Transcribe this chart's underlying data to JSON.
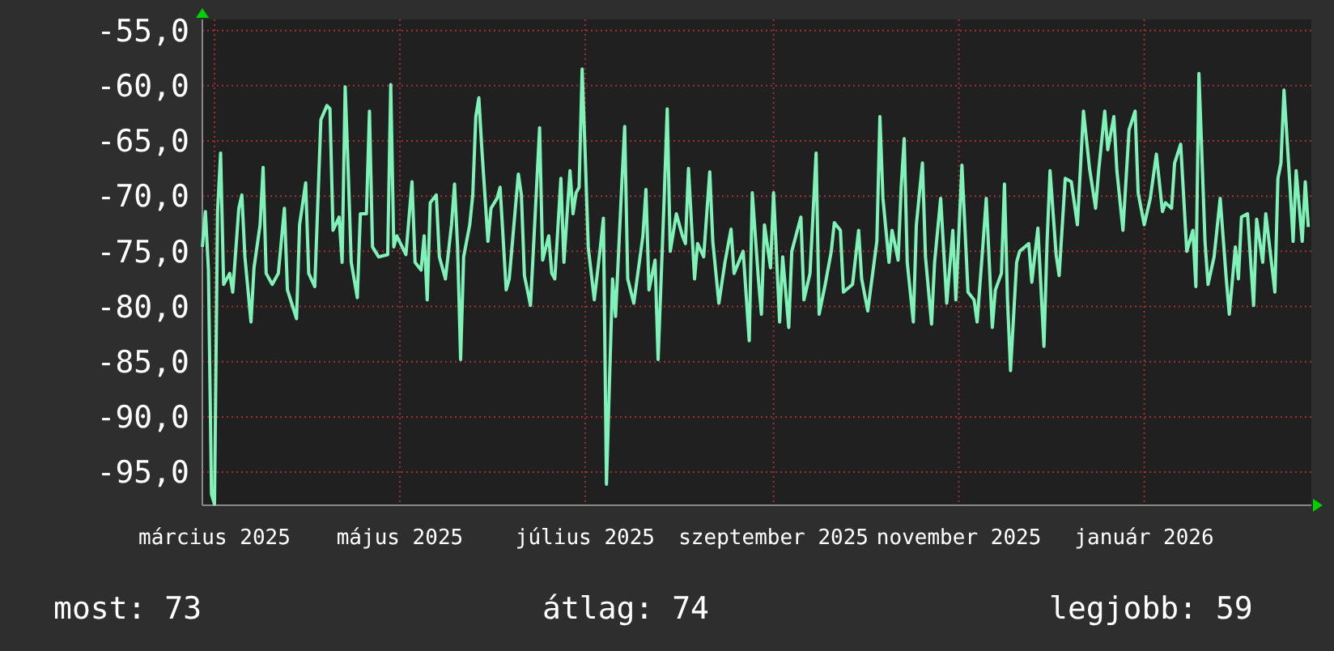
{
  "chart_data": {
    "type": "line",
    "x": [
      "2025-03-11",
      "2025-03-12",
      "2025-03-13",
      "2025-03-14",
      "2025-03-15",
      "2025-03-16",
      "2025-03-17",
      "2025-03-18",
      "2025-03-20",
      "2025-03-21",
      "2025-03-23",
      "2025-03-24",
      "2025-03-25",
      "2025-03-27",
      "2025-03-28",
      "2025-03-30",
      "2025-03-31",
      "2025-04-01",
      "2025-04-03",
      "2025-04-05",
      "2025-04-07",
      "2025-04-08",
      "2025-04-11",
      "2025-04-12",
      "2025-04-14",
      "2025-04-15",
      "2025-04-17",
      "2025-04-19",
      "2025-04-21",
      "2025-04-22",
      "2025-04-23",
      "2025-04-25",
      "2025-04-26",
      "2025-04-27",
      "2025-04-28",
      "2025-04-29",
      "2025-05-01",
      "2025-05-02",
      "2025-05-04",
      "2025-05-05",
      "2025-05-06",
      "2025-05-08",
      "2025-05-11",
      "2025-05-12",
      "2025-05-13",
      "2025-05-14",
      "2025-05-17",
      "2025-05-19",
      "2025-05-20",
      "2025-05-22",
      "2025-05-23",
      "2025-05-24",
      "2025-05-25",
      "2025-05-27",
      "2025-05-28",
      "2025-05-30",
      "2025-06-01",
      "2025-06-02",
      "2025-06-03",
      "2025-06-04",
      "2025-06-05",
      "2025-06-07",
      "2025-06-08",
      "2025-06-09",
      "2025-06-10",
      "2025-06-11",
      "2025-06-13",
      "2025-06-14",
      "2025-06-16",
      "2025-06-17",
      "2025-06-19",
      "2025-06-20",
      "2025-06-23",
      "2025-06-24",
      "2025-06-25",
      "2025-06-27",
      "2025-06-28",
      "2025-06-30",
      "2025-07-01",
      "2025-07-03",
      "2025-07-04",
      "2025-07-05",
      "2025-07-07",
      "2025-07-08",
      "2025-07-10",
      "2025-07-11",
      "2025-07-12",
      "2025-07-13",
      "2025-07-14",
      "2025-07-15",
      "2025-07-16",
      "2025-07-18",
      "2025-07-20",
      "2025-07-21",
      "2025-07-22",
      "2025-07-24",
      "2025-07-25",
      "2025-07-27",
      "2025-07-28",
      "2025-07-29",
      "2025-07-31",
      "2025-08-03",
      "2025-08-04",
      "2025-08-05",
      "2025-08-07",
      "2025-08-08",
      "2025-08-10",
      "2025-08-11",
      "2025-08-12",
      "2025-08-14",
      "2025-08-16",
      "2025-08-17",
      "2025-08-18",
      "2025-08-20",
      "2025-08-21",
      "2025-08-23",
      "2025-08-25",
      "2025-08-26",
      "2025-08-28",
      "2025-08-30",
      "2025-09-01",
      "2025-09-02",
      "2025-09-05",
      "2025-09-07",
      "2025-09-08",
      "2025-09-10",
      "2025-09-11",
      "2025-09-12",
      "2025-09-14",
      "2025-09-15",
      "2025-09-17",
      "2025-09-18",
      "2025-09-20",
      "2025-09-21",
      "2025-09-24",
      "2025-09-25",
      "2025-09-27",
      "2025-09-28",
      "2025-09-29",
      "2025-09-30",
      "2025-10-02",
      "2025-10-04",
      "2025-10-05",
      "2025-10-07",
      "2025-10-08",
      "2025-10-11",
      "2025-10-13",
      "2025-10-14",
      "2025-10-16",
      "2025-10-19",
      "2025-10-20",
      "2025-10-21",
      "2025-10-23",
      "2025-10-24",
      "2025-10-26",
      "2025-10-27",
      "2025-10-28",
      "2025-10-29",
      "2025-10-31",
      "2025-11-01",
      "2025-11-03",
      "2025-11-04",
      "2025-11-06",
      "2025-11-07",
      "2025-11-09",
      "2025-11-11",
      "2025-11-13",
      "2025-11-14",
      "2025-11-16",
      "2025-11-18",
      "2025-11-20",
      "2025-11-21",
      "2025-11-23",
      "2025-11-24",
      "2025-11-26",
      "2025-11-27",
      "2025-11-29",
      "2025-11-30",
      "2025-12-01",
      "2025-12-02",
      "2025-12-04",
      "2025-12-05",
      "2025-12-08",
      "2025-12-09",
      "2025-12-11",
      "2025-12-13",
      "2025-12-14",
      "2025-12-15",
      "2025-12-17",
      "2025-12-18",
      "2025-12-20",
      "2025-12-22",
      "2025-12-24",
      "2025-12-26",
      "2025-12-28",
      "2025-12-30",
      "2025-12-31",
      "2026-01-02",
      "2026-01-03",
      "2026-01-05",
      "2026-01-06",
      "2026-01-08",
      "2026-01-10",
      "2026-01-12",
      "2026-01-13",
      "2026-01-15",
      "2026-01-17",
      "2026-01-19",
      "2026-01-21",
      "2026-01-22",
      "2026-01-24",
      "2026-01-25",
      "2026-01-27",
      "2026-01-29",
      "2026-01-31",
      "2026-02-01",
      "2026-02-02",
      "2026-02-04",
      "2026-02-05",
      "2026-02-07",
      "2026-02-09",
      "2026-02-11",
      "2026-02-12",
      "2026-02-14",
      "2026-02-15",
      "2026-02-16",
      "2026-02-18",
      "2026-02-20",
      "2026-02-21",
      "2026-02-23",
      "2026-02-24",
      "2026-02-26",
      "2026-02-27",
      "2026-02-28",
      "2026-03-01",
      "2026-03-02",
      "2026-03-04",
      "2026-03-05",
      "2026-03-06",
      "2026-03-08",
      "2026-03-09",
      "2026-03-10"
    ],
    "series": [
      {
        "color": "#7ff2b8",
        "values": [
          -74.6,
          -71.4,
          -76.7,
          -97.0,
          -97.9,
          -71.4,
          -66.1,
          -78.0,
          -77.0,
          -78.7,
          -71.1,
          -69.9,
          -75.5,
          -81.4,
          -76.5,
          -72.6,
          -67.4,
          -77.0,
          -78.0,
          -77.0,
          -71.1,
          -78.5,
          -81.1,
          -72.6,
          -68.8,
          -77.0,
          -78.2,
          -63.1,
          -61.8,
          -62.1,
          -73.1,
          -71.9,
          -76.0,
          -60.1,
          -67.7,
          -76.0,
          -79.2,
          -71.6,
          -71.6,
          -62.3,
          -74.6,
          -75.5,
          -75.3,
          -59.9,
          -74.6,
          -73.6,
          -75.3,
          -68.7,
          -76.0,
          -76.7,
          -73.6,
          -79.4,
          -70.6,
          -69.9,
          -75.5,
          -77.5,
          -72.6,
          -68.9,
          -74.6,
          -84.8,
          -75.5,
          -72.6,
          -69.9,
          -62.8,
          -61.1,
          -65.8,
          -74.1,
          -71.1,
          -70.2,
          -69.2,
          -78.5,
          -77.5,
          -68.0,
          -69.9,
          -77.2,
          -79.9,
          -74.6,
          -63.8,
          -75.8,
          -73.6,
          -77.0,
          -77.5,
          -68.4,
          -76.0,
          -67.7,
          -71.6,
          -69.7,
          -69.2,
          -58.5,
          -66.2,
          -74.6,
          -79.4,
          -74.6,
          -72.0,
          -96.1,
          -77.5,
          -80.9,
          -69.2,
          -63.7,
          -77.5,
          -79.7,
          -73.6,
          -69.4,
          -78.5,
          -75.8,
          -84.8,
          -70.2,
          -62.1,
          -75.0,
          -71.6,
          -73.6,
          -74.3,
          -67.5,
          -77.5,
          -74.3,
          -75.5,
          -67.8,
          -74.1,
          -79.7,
          -76.0,
          -73.0,
          -77.0,
          -75.0,
          -83.1,
          -69.7,
          -77.5,
          -80.7,
          -72.6,
          -76.5,
          -69.7,
          -81.4,
          -75.5,
          -81.9,
          -75.0,
          -71.9,
          -79.4,
          -77.0,
          -71.6,
          -66.1,
          -80.7,
          -78.0,
          -75.0,
          -72.4,
          -73.1,
          -78.7,
          -78.0,
          -73.1,
          -77.5,
          -80.4,
          -74.1,
          -62.8,
          -70.2,
          -76.0,
          -73.1,
          -75.8,
          -69.2,
          -64.8,
          -76.0,
          -81.4,
          -72.6,
          -67.0,
          -75.5,
          -81.6,
          -76.0,
          -70.2,
          -79.7,
          -73.1,
          -79.4,
          -67.2,
          -78.7,
          -79.4,
          -81.4,
          -74.1,
          -70.2,
          -81.9,
          -78.5,
          -77.0,
          -68.9,
          -79.4,
          -85.8,
          -76.0,
          -75.0,
          -74.3,
          -77.8,
          -72.9,
          -83.6,
          -74.3,
          -67.7,
          -75.3,
          -77.2,
          -68.4,
          -68.7,
          -72.6,
          -62.3,
          -67.5,
          -71.1,
          -67.7,
          -62.3,
          -65.8,
          -62.8,
          -67.7,
          -73.1,
          -64.0,
          -62.3,
          -69.7,
          -72.6,
          -70.2,
          -66.2,
          -71.4,
          -70.6,
          -71.1,
          -67.0,
          -65.3,
          -75.0,
          -73.1,
          -78.2,
          -58.9,
          -74.1,
          -78.0,
          -75.5,
          -70.2,
          -77.5,
          -80.7,
          -74.6,
          -77.5,
          -71.9,
          -71.6,
          -79.9,
          -72.1,
          -76.0,
          -71.6,
          -76.3,
          -78.7,
          -68.4,
          -67.0,
          -60.4,
          -69.2,
          -74.1,
          -67.7,
          -74.1,
          -68.7,
          -72.8
        ]
      }
    ],
    "xlim": [
      "2025-03-11",
      "2026-03-11"
    ],
    "xticks": [
      {
        "value": "2025-03-15",
        "label": "március 2025"
      },
      {
        "value": "2025-05-15",
        "label": "május 2025"
      },
      {
        "value": "2025-07-15",
        "label": "július 2025"
      },
      {
        "value": "2025-09-15",
        "label": "szeptember 2025"
      },
      {
        "value": "2025-11-15",
        "label": "november 2025"
      },
      {
        "value": "2026-01-15",
        "label": "január 2026"
      }
    ],
    "ylim": [
      -98,
      -54
    ],
    "yticks": [
      {
        "value": -55,
        "label": "-55,0"
      },
      {
        "value": -60,
        "label": "-60,0"
      },
      {
        "value": -65,
        "label": "-65,0"
      },
      {
        "value": -70,
        "label": "-70,0"
      },
      {
        "value": -75,
        "label": "-75,0"
      },
      {
        "value": -80,
        "label": "-80,0"
      },
      {
        "value": -85,
        "label": "-85,0"
      },
      {
        "value": -90,
        "label": "-90,0"
      },
      {
        "value": -95,
        "label": "-95,0"
      }
    ],
    "grid": true,
    "line_style": "solid",
    "annotations": [
      "most: 73",
      "átlag: 74",
      "legjobb: 59"
    ]
  }
}
